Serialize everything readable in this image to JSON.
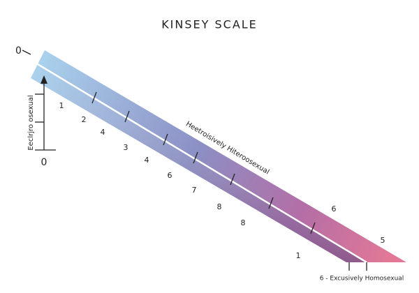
{
  "title": "KINSEY SCALE",
  "axis": {
    "top_label": "0",
    "vertical_label": "Eeclrjro osexual",
    "bottom_label": "0"
  },
  "scale_labels": [
    "1",
    "2",
    "4",
    "3",
    "4",
    "6",
    "7",
    "8",
    "8",
    "1",
    "6",
    "5"
  ],
  "diagonal_label": "Heetroisively Hiteroosexual",
  "end_label": "6 - Excusively Homosexual"
}
